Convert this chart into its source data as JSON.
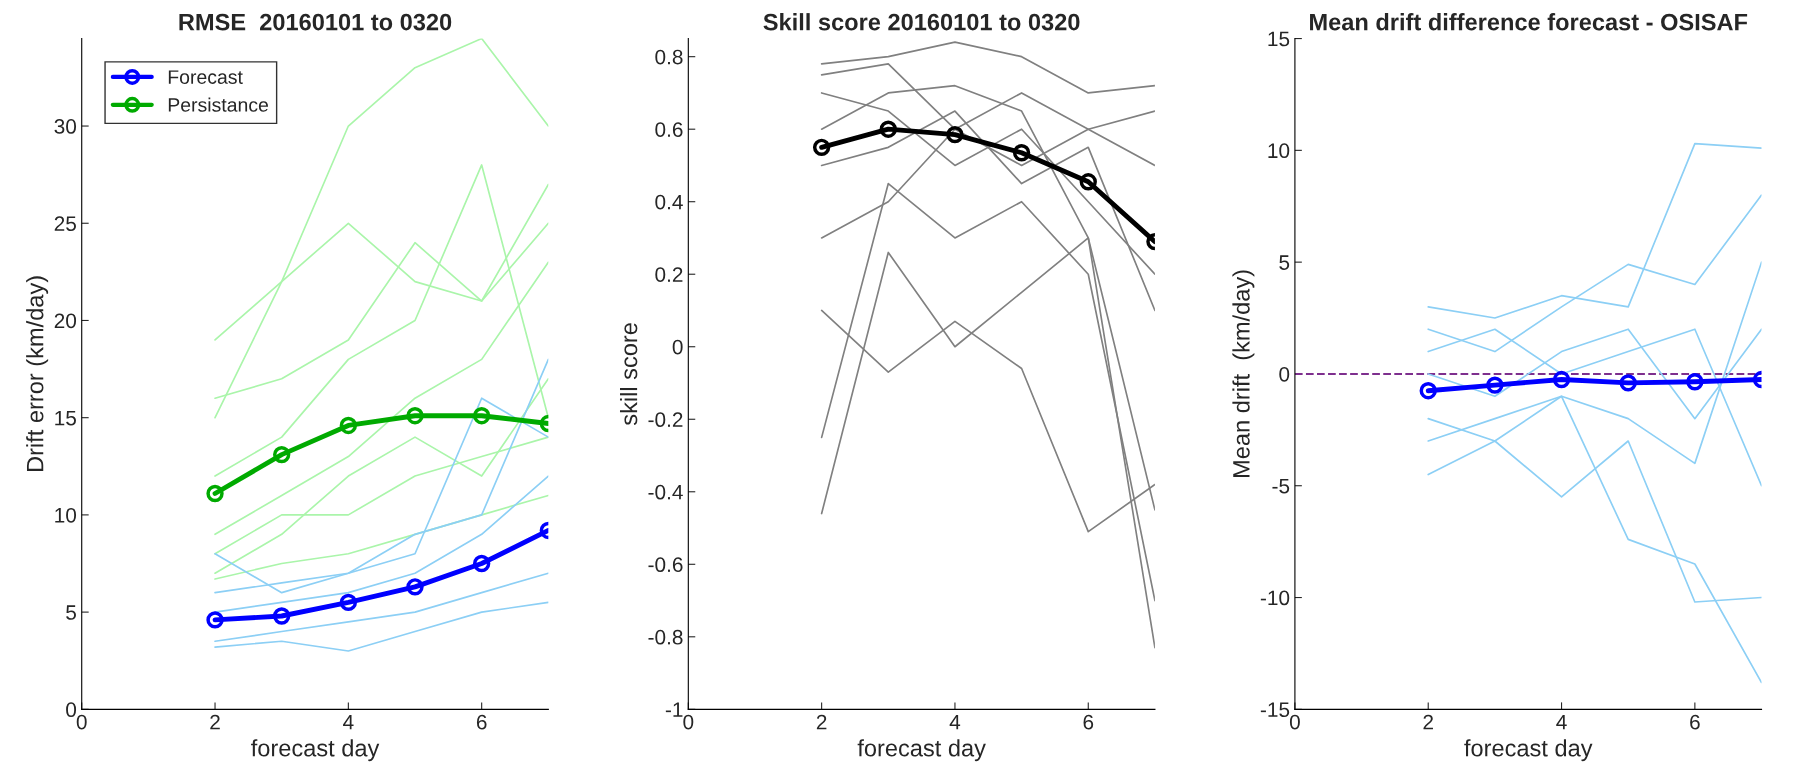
{
  "chart_data": [
    {
      "type": "line",
      "title": "RMSE  20160101 to 0320",
      "xlabel": "forecast day",
      "ylabel": "Drift error (km/day)",
      "x": [
        2,
        3,
        4,
        5,
        6,
        7
      ],
      "xlim": [
        0,
        7
      ],
      "xticks": [
        0,
        2,
        4,
        6
      ],
      "ylim": [
        0,
        34.5
      ],
      "yticks": [
        0,
        5,
        10,
        15,
        20,
        25,
        30
      ],
      "grid": false,
      "legend": "top left",
      "series": [
        {
          "color": "#aaf5aa",
          "values": [
            19,
            22,
            30,
            33,
            34.5,
            30
          ]
        },
        {
          "color": "#aaf5aa",
          "values": [
            15,
            22,
            25,
            22,
            21,
            27
          ]
        },
        {
          "color": "#aaf5aa",
          "values": [
            12,
            14,
            18,
            20,
            28,
            15
          ]
        },
        {
          "color": "#aaf5aa",
          "values": [
            9,
            11,
            13,
            16,
            18,
            23
          ]
        },
        {
          "color": "#aaf5aa",
          "values": [
            7,
            9,
            12,
            14,
            12,
            17
          ]
        },
        {
          "color": "#aaf5aa",
          "values": [
            16,
            17,
            19,
            24,
            21,
            25
          ]
        },
        {
          "color": "#aaf5aa",
          "values": [
            8,
            10,
            10,
            12,
            13,
            14
          ]
        },
        {
          "color": "#aaf5aa",
          "values": [
            6.7,
            7.5,
            8,
            9,
            10,
            11
          ]
        },
        {
          "color": "#8ccff5",
          "values": [
            3.2,
            3.5,
            3,
            4,
            5,
            5.5
          ]
        },
        {
          "color": "#8ccff5",
          "values": [
            8,
            6,
            7,
            9,
            10,
            18
          ]
        },
        {
          "color": "#8ccff5",
          "values": [
            5,
            5.5,
            6,
            7,
            9,
            12
          ]
        },
        {
          "color": "#8ccff5",
          "values": [
            3.5,
            4,
            4.5,
            5,
            6,
            7
          ]
        },
        {
          "color": "#8ccff5",
          "values": [
            6,
            6.5,
            7,
            8,
            16,
            14
          ]
        },
        {
          "name": "Forecast",
          "color": "#0000ff",
          "marker": "circle",
          "values": [
            4.6,
            4.8,
            5.5,
            6.3,
            7.5,
            9.2
          ]
        },
        {
          "name": "Persistance",
          "color": "#00aa00",
          "marker": "circle",
          "values": [
            11.1,
            13.1,
            14.6,
            15.1,
            15.1,
            14.7
          ]
        }
      ]
    },
    {
      "type": "line",
      "title": "Skill score 20160101 to 0320",
      "xlabel": "forecast day",
      "ylabel": "skill score",
      "x": [
        2,
        3,
        4,
        5,
        6,
        7
      ],
      "xlim": [
        0,
        7
      ],
      "xticks": [
        0,
        2,
        4,
        6
      ],
      "ylim": [
        -1,
        0.85
      ],
      "yticks": [
        -1,
        -0.8,
        -0.6,
        -0.4,
        -0.2,
        0,
        0.2,
        0.4,
        0.6,
        0.8
      ],
      "grid": false,
      "series": [
        {
          "color": "#808080",
          "values": [
            0.1,
            -0.07,
            0.07,
            -0.06,
            -0.51,
            -0.38
          ]
        },
        {
          "color": "#808080",
          "values": [
            -0.46,
            0.26,
            0.0,
            0.15,
            0.3,
            -0.83
          ]
        },
        {
          "color": "#808080",
          "values": [
            -0.25,
            0.45,
            0.3,
            0.4,
            0.2,
            -0.7
          ]
        },
        {
          "color": "#808080",
          "values": [
            0.78,
            0.8,
            0.84,
            0.8,
            0.7,
            0.72
          ]
        },
        {
          "color": "#808080",
          "values": [
            0.7,
            0.65,
            0.5,
            0.6,
            0.4,
            0.2
          ]
        },
        {
          "color": "#808080",
          "values": [
            0.5,
            0.55,
            0.65,
            0.45,
            0.55,
            0.1
          ]
        },
        {
          "color": "#808080",
          "values": [
            0.3,
            0.4,
            0.6,
            0.7,
            0.6,
            0.5
          ]
        },
        {
          "color": "#808080",
          "values": [
            0.6,
            0.7,
            0.72,
            0.65,
            0.3,
            -0.45
          ]
        },
        {
          "color": "#808080",
          "values": [
            0.75,
            0.78,
            0.6,
            0.5,
            0.6,
            0.65
          ]
        },
        {
          "color": "#000000",
          "marker": "circle",
          "values": [
            0.55,
            0.6,
            0.585,
            0.535,
            0.455,
            0.29
          ]
        }
      ]
    },
    {
      "type": "line",
      "title": "Mean drift difference forecast - OSISAF",
      "xlabel": "forecast day",
      "ylabel": "Mean drift  (km/day)",
      "x": [
        2,
        3,
        4,
        5,
        6,
        7
      ],
      "xlim": [
        0,
        7
      ],
      "xticks": [
        0,
        2,
        4,
        6
      ],
      "ylim": [
        -15,
        15
      ],
      "yticks": [
        -15,
        -10,
        -5,
        0,
        5,
        10,
        15
      ],
      "grid": false,
      "ref_lines": [
        {
          "axis": "y",
          "value": 0,
          "color": "#7e2f8e",
          "line_style": "dashed"
        }
      ],
      "series": [
        {
          "color": "#8ccff5",
          "values": [
            3,
            2.5,
            3.5,
            3,
            10.3,
            10.1
          ]
        },
        {
          "color": "#8ccff5",
          "values": [
            -4.5,
            -3,
            -5.5,
            -3,
            -10.2,
            -10
          ]
        },
        {
          "color": "#8ccff5",
          "values": [
            2,
            1,
            3,
            4.9,
            4,
            8
          ]
        },
        {
          "color": "#8ccff5",
          "values": [
            -2,
            -3,
            -1,
            -7.4,
            -8.5,
            -13.8
          ]
        },
        {
          "color": "#8ccff5",
          "values": [
            1,
            2,
            0,
            1,
            2,
            -5
          ]
        },
        {
          "color": "#8ccff5",
          "values": [
            -3,
            -2,
            -1,
            -2,
            -4,
            5
          ]
        },
        {
          "color": "#8ccff5",
          "values": [
            0,
            -1,
            1,
            2,
            -2,
            2
          ]
        },
        {
          "color": "#0000ff",
          "marker": "circle",
          "values": [
            -0.75,
            -0.5,
            -0.25,
            -0.4,
            -0.35,
            -0.25
          ]
        }
      ]
    }
  ]
}
